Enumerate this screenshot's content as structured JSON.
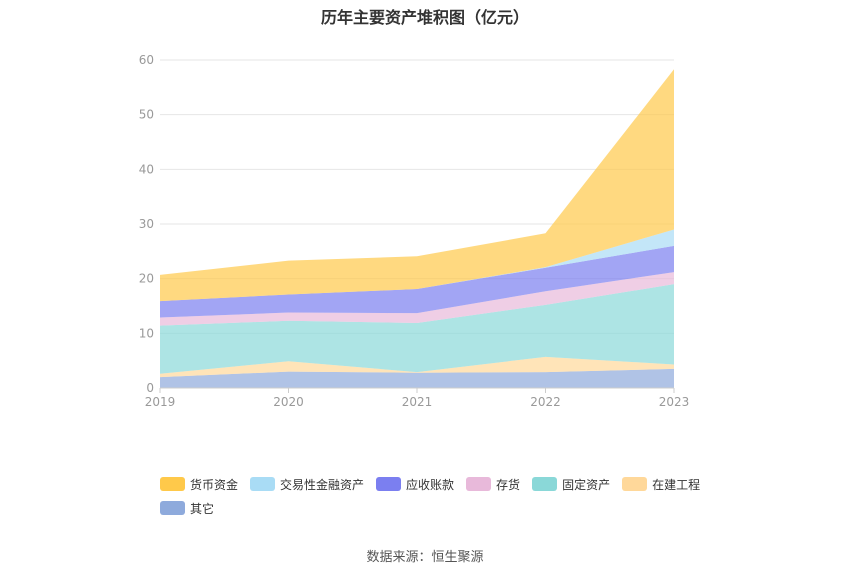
{
  "title": "历年主要资产堆积图（亿元）",
  "source": "数据来源：恒生聚源",
  "chart_data": {
    "type": "area",
    "stacked": true,
    "x": [
      "2019",
      "2020",
      "2021",
      "2022",
      "2023"
    ],
    "ylim": [
      0,
      60
    ],
    "yticks": [
      0,
      10,
      20,
      30,
      40,
      50,
      60
    ],
    "grid": true,
    "legend_position": "bottom",
    "series": [
      {
        "name": "其它",
        "color": "#8eaadc",
        "values": [
          2.0,
          3.0,
          2.8,
          2.9,
          3.5
        ]
      },
      {
        "name": "在建工程",
        "color": "#ffd89a",
        "values": [
          0.6,
          1.9,
          0.1,
          2.8,
          0.8
        ]
      },
      {
        "name": "固定资产",
        "color": "#8ad8d8",
        "values": [
          8.8,
          7.4,
          9.0,
          9.5,
          14.7
        ]
      },
      {
        "name": "存货",
        "color": "#e8b9da",
        "values": [
          1.5,
          1.5,
          1.8,
          2.5,
          2.2
        ]
      },
      {
        "name": "应收账款",
        "color": "#7b7ff0",
        "values": [
          3.0,
          3.3,
          4.4,
          4.3,
          4.8
        ]
      },
      {
        "name": "交易性金融资产",
        "color": "#a9dcf5",
        "values": [
          0,
          0,
          0,
          0.1,
          3.0
        ]
      },
      {
        "name": "货币资金",
        "color": "#ffc94a",
        "values": [
          4.8,
          6.2,
          6.0,
          6.2,
          29.3
        ]
      }
    ],
    "legend_order": [
      "货币资金",
      "交易性金融资产",
      "应收账款",
      "存货",
      "固定资产",
      "在建工程",
      "其它"
    ]
  }
}
